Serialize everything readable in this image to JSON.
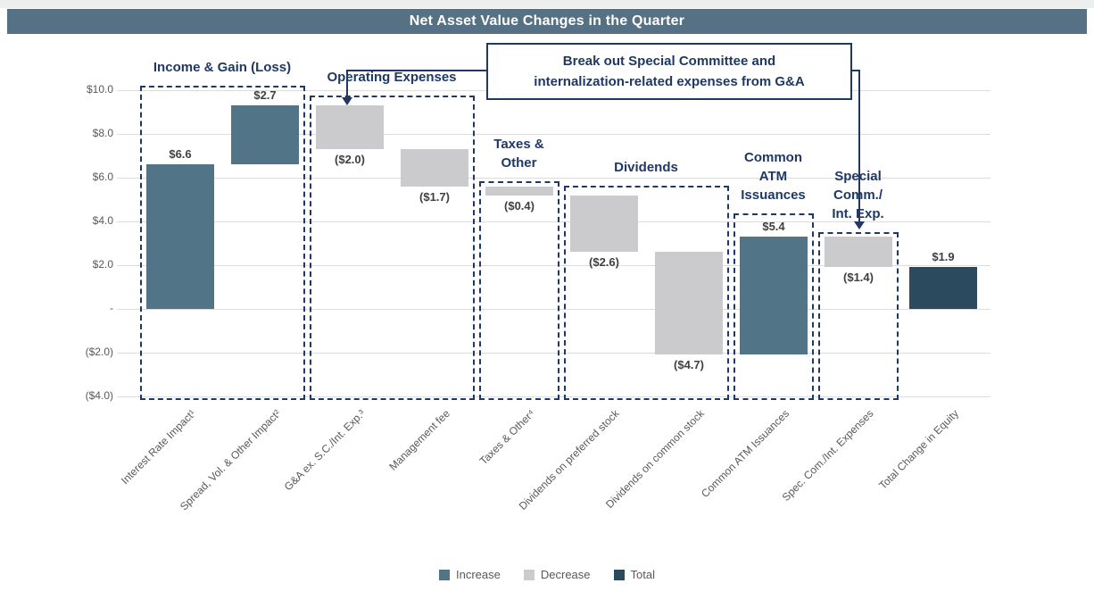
{
  "title": "Net Asset Value Changes in the Quarter",
  "callout": {
    "line1": "Break out Special Committee and",
    "line2": "internalization-related expenses from G&A"
  },
  "legend": [
    {
      "label": "Increase",
      "type": "increase"
    },
    {
      "label": "Decrease",
      "type": "decrease"
    },
    {
      "label": "Total",
      "type": "total"
    }
  ],
  "colors": {
    "increase": "#527487",
    "decrease": "#cbcbce",
    "total": "#2b4a5e",
    "title_bar": "#567183",
    "annotation": "#1f3864",
    "grid": "#dcdcdc",
    "axis_text": "#595959",
    "value_text": "#3f3f3f"
  },
  "chart_data": {
    "type": "bar",
    "subtype": "waterfall",
    "title": "Net Asset Value Changes in the Quarter",
    "xlabel": "",
    "ylabel": "",
    "ylim": [
      -4.4,
      10.6
    ],
    "grid": true,
    "legend_position": "bottom",
    "yticks": [
      {
        "label": "$10.0",
        "value": 10
      },
      {
        "label": "$8.0",
        "value": 8
      },
      {
        "label": "$6.0",
        "value": 6
      },
      {
        "label": "$4.0",
        "value": 4
      },
      {
        "label": "$2.0",
        "value": 2
      },
      {
        "label": "-",
        "value": 0
      },
      {
        "label": "($2.0)",
        "value": -2
      },
      {
        "label": "($4.0)",
        "value": -4
      }
    ],
    "bars": [
      {
        "category": "Interest Rate Impact¹",
        "value": 6.6,
        "label": "$6.6",
        "type": "increase"
      },
      {
        "category": "Spread, Vol. & Other Impact²",
        "value": 2.7,
        "label": "$2.7",
        "type": "increase"
      },
      {
        "category": "G&A ex. S.C./Int. Exp.³",
        "value": -2.0,
        "label": "($2.0)",
        "type": "decrease"
      },
      {
        "category": "Management fee",
        "value": -1.7,
        "label": "($1.7)",
        "type": "decrease"
      },
      {
        "category": "Taxes & Other⁴",
        "value": -0.4,
        "label": "($0.4)",
        "type": "decrease"
      },
      {
        "category": "Dividends on preferred stock",
        "value": -2.6,
        "label": "($2.6)",
        "type": "decrease"
      },
      {
        "category": "Dividends on common stock",
        "value": -4.7,
        "label": "($4.7)",
        "type": "decrease"
      },
      {
        "category": "Common ATM Issuances",
        "value": 5.4,
        "label": "$5.4",
        "type": "increase"
      },
      {
        "category": "Spec. Com./Int. Expenses",
        "value": -1.4,
        "label": "($1.4)",
        "type": "decrease"
      },
      {
        "category": "Total Change in Equity",
        "value": 1.9,
        "label": "$1.9",
        "type": "total"
      }
    ],
    "groups": [
      {
        "lines": [
          "Income & Gain (Loss)"
        ],
        "from": 0,
        "to": 1,
        "top_usd": 10.2
      },
      {
        "lines": [
          "Operating Expenses"
        ],
        "from": 2,
        "to": 3,
        "top_usd": 9.75
      },
      {
        "lines": [
          "Taxes &",
          "Other"
        ],
        "from": 4,
        "to": 4,
        "top_usd": 5.85
      },
      {
        "lines": [
          "Dividends"
        ],
        "from": 5,
        "to": 6,
        "top_usd": 5.65
      },
      {
        "lines": [
          "Common",
          "ATM",
          "Issuances"
        ],
        "from": 7,
        "to": 7,
        "top_usd": 4.35
      },
      {
        "lines": [
          "Special",
          "Comm./",
          "Int. Exp."
        ],
        "from": 8,
        "to": 8,
        "top_usd": 3.5
      }
    ],
    "group_bottom_usd": -4.15
  }
}
